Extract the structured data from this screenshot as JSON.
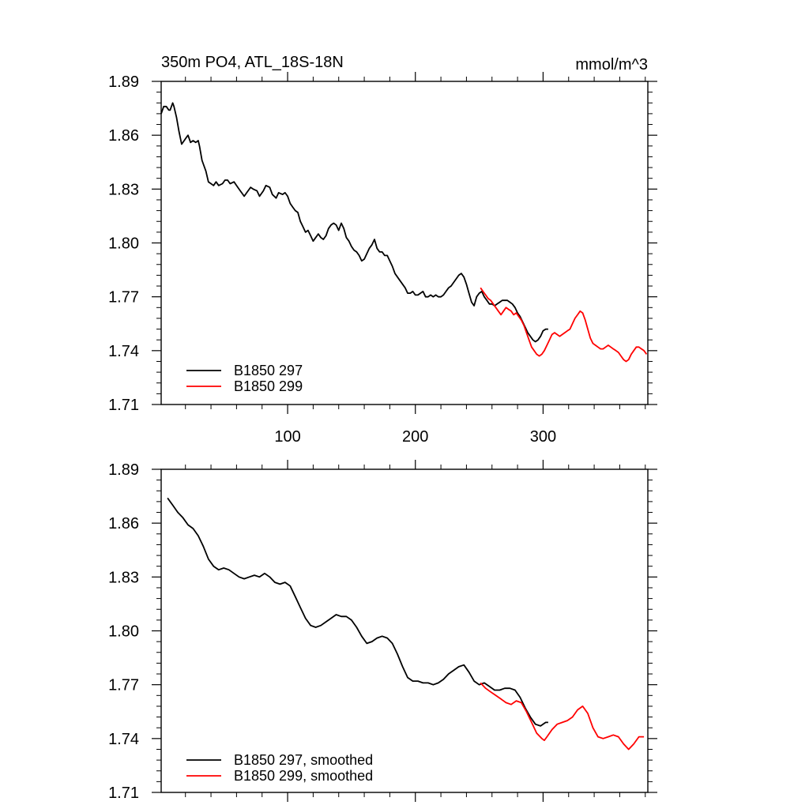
{
  "chart_data": [
    {
      "type": "line",
      "title": "350m PO4, ATL_18S-18N",
      "units": "mmol/m^3",
      "xlabel": "",
      "ylabel": "",
      "xlim": [
        1,
        382
      ],
      "ylim": [
        1.71,
        1.89
      ],
      "xticks": [
        100,
        200,
        300
      ],
      "xtick_labels": [
        "100",
        "200",
        "300"
      ],
      "yticks": [
        1.71,
        1.74,
        1.77,
        1.8,
        1.83,
        1.86,
        1.89
      ],
      "ytick_labels": [
        "1.71",
        "1.74",
        "1.77",
        "1.80",
        "1.83",
        "1.86",
        "1.89"
      ],
      "grid": false,
      "legend_position": "bottom-left",
      "series": [
        {
          "name": "B1850 297",
          "color": "#000000",
          "x": [
            1,
            3,
            5,
            7,
            8,
            10,
            11,
            13,
            15,
            17,
            19,
            21,
            22,
            24,
            26,
            28,
            30,
            31,
            33,
            36,
            38,
            40,
            42,
            44,
            46,
            49,
            51,
            53,
            55,
            58,
            61,
            63,
            66,
            68,
            71,
            73,
            76,
            78,
            81,
            83,
            86,
            88,
            91,
            93,
            96,
            98,
            100,
            102,
            104,
            106,
            108,
            110,
            112,
            114,
            116,
            118,
            120,
            122,
            124,
            126,
            128,
            130,
            132,
            134,
            136,
            138,
            140,
            142,
            144,
            146,
            148,
            150,
            152,
            154,
            156,
            158,
            160,
            162,
            164,
            166,
            168,
            170,
            172,
            174,
            176,
            178,
            180,
            182,
            184,
            186,
            188,
            190,
            192,
            194,
            196,
            198,
            200,
            202,
            204,
            206,
            208,
            210,
            212,
            214,
            216,
            218,
            220,
            222,
            224,
            226,
            228,
            230,
            232,
            234,
            236,
            238,
            240,
            242,
            244,
            246,
            248,
            250,
            252,
            254,
            256,
            258,
            260,
            262,
            264,
            266,
            268,
            270,
            272,
            274,
            276,
            278,
            280,
            282,
            284,
            286,
            288,
            290,
            292,
            294,
            296,
            298,
            300,
            302,
            304
          ],
          "values": [
            1.872,
            1.876,
            1.876,
            1.874,
            1.874,
            1.878,
            1.876,
            1.87,
            1.862,
            1.855,
            1.857,
            1.859,
            1.86,
            1.856,
            1.857,
            1.856,
            1.857,
            1.854,
            1.846,
            1.84,
            1.834,
            1.833,
            1.832,
            1.834,
            1.832,
            1.833,
            1.835,
            1.835,
            1.833,
            1.834,
            1.831,
            1.829,
            1.826,
            1.828,
            1.831,
            1.83,
            1.829,
            1.826,
            1.829,
            1.832,
            1.831,
            1.827,
            1.825,
            1.828,
            1.827,
            1.828,
            1.826,
            1.822,
            1.82,
            1.818,
            1.817,
            1.812,
            1.809,
            1.806,
            1.807,
            1.804,
            1.801,
            1.803,
            1.805,
            1.803,
            1.802,
            1.804,
            1.808,
            1.81,
            1.811,
            1.81,
            1.807,
            1.811,
            1.808,
            1.803,
            1.801,
            1.798,
            1.796,
            1.795,
            1.793,
            1.79,
            1.791,
            1.794,
            1.797,
            1.799,
            1.802,
            1.797,
            1.795,
            1.795,
            1.793,
            1.793,
            1.79,
            1.787,
            1.783,
            1.781,
            1.779,
            1.777,
            1.775,
            1.772,
            1.772,
            1.773,
            1.771,
            1.771,
            1.772,
            1.773,
            1.77,
            1.77,
            1.771,
            1.77,
            1.771,
            1.77,
            1.77,
            1.771,
            1.773,
            1.775,
            1.776,
            1.778,
            1.78,
            1.782,
            1.783,
            1.781,
            1.777,
            1.772,
            1.767,
            1.765,
            1.77,
            1.772,
            1.773,
            1.77,
            1.768,
            1.766,
            1.766,
            1.765,
            1.766,
            1.767,
            1.768,
            1.768,
            1.768,
            1.767,
            1.766,
            1.764,
            1.761,
            1.759,
            1.756,
            1.753,
            1.75,
            1.748,
            1.746,
            1.745,
            1.746,
            1.748,
            1.751,
            1.752,
            1.752
          ]
        },
        {
          "name": "B1850 299",
          "color": "#ff0000",
          "x": [
            251,
            253,
            255,
            257,
            259,
            261,
            263,
            265,
            267,
            269,
            271,
            273,
            275,
            277,
            279,
            281,
            283,
            285,
            287,
            289,
            291,
            293,
            295,
            297,
            299,
            301,
            303,
            305,
            307,
            309,
            311,
            313,
            315,
            317,
            319,
            321,
            323,
            325,
            327,
            329,
            331,
            333,
            335,
            337,
            339,
            341,
            343,
            345,
            347,
            349,
            351,
            353,
            355,
            357,
            359,
            361,
            363,
            365,
            367,
            369,
            371,
            373,
            375,
            377,
            379,
            381
          ],
          "values": [
            1.775,
            1.773,
            1.771,
            1.769,
            1.768,
            1.766,
            1.764,
            1.762,
            1.76,
            1.762,
            1.764,
            1.763,
            1.762,
            1.76,
            1.761,
            1.759,
            1.757,
            1.754,
            1.75,
            1.746,
            1.742,
            1.74,
            1.738,
            1.737,
            1.738,
            1.74,
            1.743,
            1.746,
            1.749,
            1.75,
            1.749,
            1.748,
            1.749,
            1.75,
            1.751,
            1.752,
            1.755,
            1.758,
            1.76,
            1.762,
            1.761,
            1.757,
            1.752,
            1.747,
            1.744,
            1.743,
            1.742,
            1.741,
            1.741,
            1.742,
            1.743,
            1.742,
            1.741,
            1.74,
            1.739,
            1.737,
            1.735,
            1.734,
            1.735,
            1.738,
            1.74,
            1.742,
            1.742,
            1.741,
            1.74,
            1.738
          ]
        }
      ]
    },
    {
      "type": "line",
      "title": "",
      "xlabel": "",
      "ylabel": "",
      "xlim": [
        1,
        382
      ],
      "ylim": [
        1.71,
        1.89
      ],
      "xticks": [
        100,
        200,
        300
      ],
      "xtick_labels": [],
      "yticks": [
        1.71,
        1.74,
        1.77,
        1.8,
        1.83,
        1.86,
        1.89
      ],
      "ytick_labels": [
        "1.71",
        "1.74",
        "1.77",
        "1.80",
        "1.83",
        "1.86",
        "1.89"
      ],
      "grid": false,
      "legend_position": "bottom-left",
      "series": [
        {
          "name": "B1850 297, smoothed",
          "color": "#000000",
          "x": [
            6,
            10,
            14,
            18,
            22,
            26,
            30,
            34,
            38,
            42,
            46,
            50,
            54,
            58,
            62,
            66,
            70,
            74,
            78,
            82,
            86,
            90,
            94,
            98,
            102,
            106,
            110,
            114,
            118,
            122,
            126,
            130,
            134,
            138,
            142,
            146,
            150,
            154,
            158,
            162,
            166,
            170,
            174,
            178,
            182,
            186,
            190,
            194,
            198,
            202,
            206,
            210,
            214,
            218,
            222,
            226,
            230,
            234,
            238,
            242,
            246,
            250,
            254,
            258,
            262,
            266,
            270,
            274,
            278,
            282,
            286,
            290,
            294,
            298,
            302,
            304
          ],
          "values": [
            1.874,
            1.87,
            1.866,
            1.863,
            1.859,
            1.857,
            1.853,
            1.847,
            1.84,
            1.836,
            1.834,
            1.835,
            1.834,
            1.832,
            1.83,
            1.829,
            1.83,
            1.831,
            1.83,
            1.832,
            1.83,
            1.827,
            1.826,
            1.827,
            1.825,
            1.819,
            1.813,
            1.807,
            1.803,
            1.802,
            1.803,
            1.805,
            1.807,
            1.809,
            1.808,
            1.808,
            1.806,
            1.802,
            1.797,
            1.793,
            1.794,
            1.796,
            1.797,
            1.796,
            1.793,
            1.787,
            1.78,
            1.774,
            1.772,
            1.772,
            1.771,
            1.771,
            1.77,
            1.771,
            1.773,
            1.776,
            1.778,
            1.78,
            1.781,
            1.777,
            1.772,
            1.77,
            1.771,
            1.769,
            1.767,
            1.767,
            1.768,
            1.768,
            1.767,
            1.763,
            1.757,
            1.752,
            1.748,
            1.747,
            1.749,
            1.749
          ]
        },
        {
          "name": "B1850 299, smoothed",
          "color": "#ff0000",
          "x": [
            251,
            255,
            259,
            263,
            267,
            271,
            275,
            279,
            283,
            287,
            291,
            295,
            299,
            301,
            303,
            307,
            311,
            315,
            319,
            323,
            327,
            331,
            335,
            339,
            343,
            347,
            351,
            355,
            359,
            363,
            367,
            371,
            375,
            379
          ],
          "values": [
            1.771,
            1.768,
            1.766,
            1.764,
            1.762,
            1.76,
            1.759,
            1.761,
            1.76,
            1.755,
            1.749,
            1.743,
            1.74,
            1.739,
            1.741,
            1.745,
            1.748,
            1.749,
            1.75,
            1.752,
            1.756,
            1.758,
            1.754,
            1.746,
            1.741,
            1.74,
            1.741,
            1.742,
            1.741,
            1.737,
            1.734,
            1.737,
            1.741,
            1.741
          ]
        }
      ]
    }
  ]
}
